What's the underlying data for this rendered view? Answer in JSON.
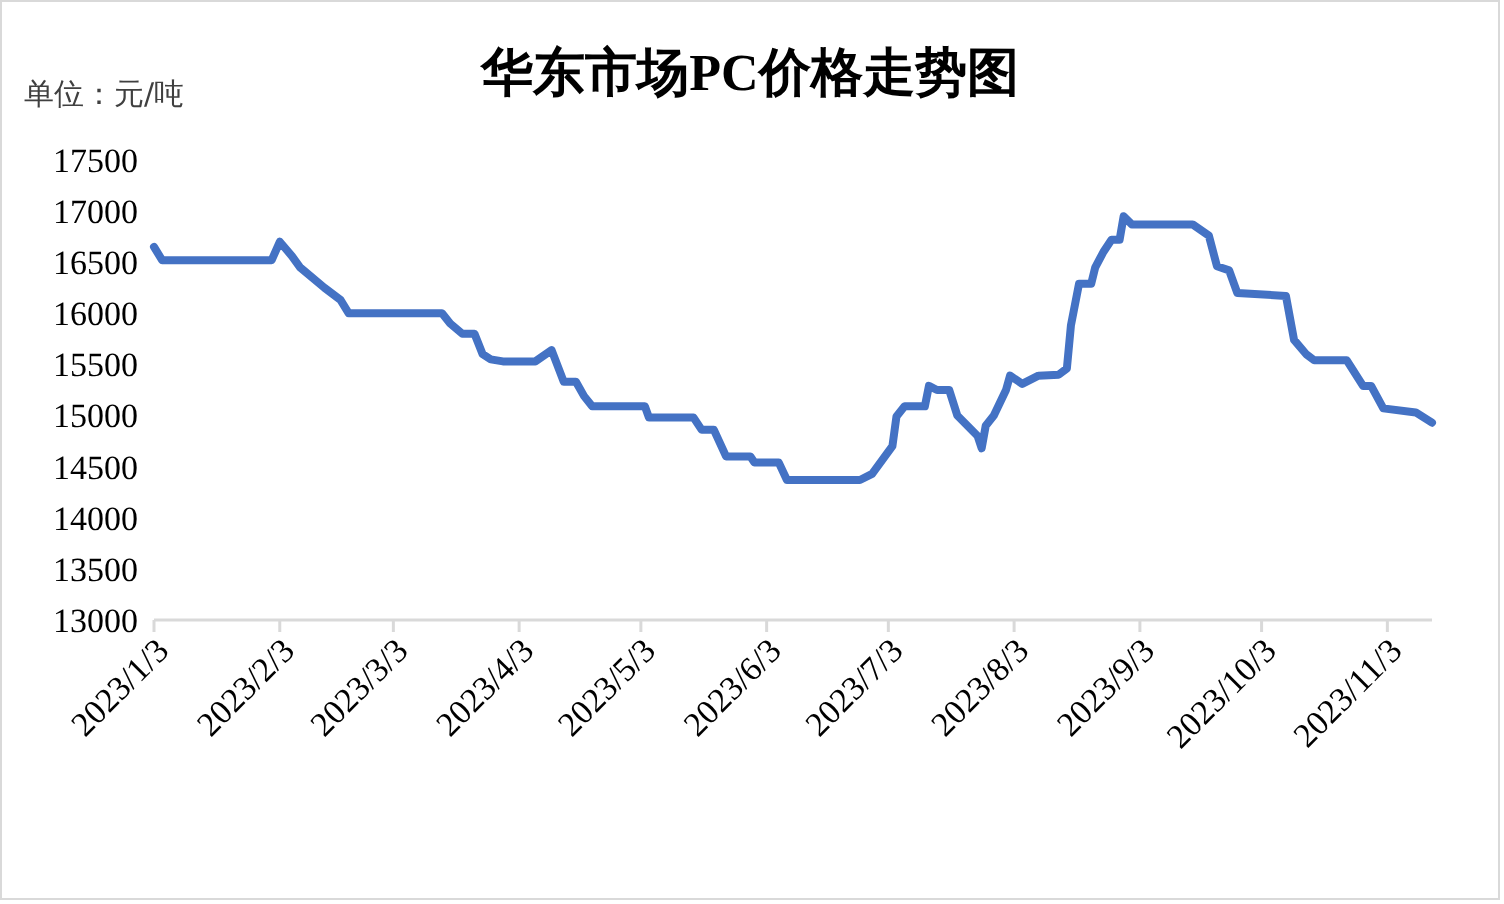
{
  "chart_data": {
    "type": "line",
    "title": "华东市场PC价格走势图",
    "ylabel": "单位：元/吨",
    "xlim": [
      "2023-01-03",
      "2023-11-14"
    ],
    "xticks": [
      {
        "value": "2023-01-03",
        "label": "2023/1/3"
      },
      {
        "value": "2023-02-03",
        "label": "2023/2/3"
      },
      {
        "value": "2023-03-03",
        "label": "2023/3/3"
      },
      {
        "value": "2023-04-03",
        "label": "2023/4/3"
      },
      {
        "value": "2023-05-03",
        "label": "2023/5/3"
      },
      {
        "value": "2023-06-03",
        "label": "2023/6/3"
      },
      {
        "value": "2023-07-03",
        "label": "2023/7/3"
      },
      {
        "value": "2023-08-03",
        "label": "2023/8/3"
      },
      {
        "value": "2023-09-03",
        "label": "2023/9/3"
      },
      {
        "value": "2023-10-03",
        "label": "2023/10/3"
      },
      {
        "value": "2023-11-03",
        "label": "2023/11/3"
      }
    ],
    "ylim": [
      13000,
      17500
    ],
    "yticks": [
      13000,
      13500,
      14000,
      14500,
      15000,
      15500,
      16000,
      16500,
      17000,
      17500
    ],
    "grid": false,
    "marker": "none",
    "line_style": "solid",
    "x": [
      "2023-01-03",
      "2023-01-05",
      "2023-02-01",
      "2023-02-03",
      "2023-02-06",
      "2023-02-08",
      "2023-02-14",
      "2023-02-18",
      "2023-02-20",
      "2023-03-15",
      "2023-03-17",
      "2023-03-20",
      "2023-03-23",
      "2023-03-25",
      "2023-03-27",
      "2023-03-30",
      "2023-04-07",
      "2023-04-11",
      "2023-04-14",
      "2023-04-17",
      "2023-04-19",
      "2023-04-21",
      "2023-05-04",
      "2023-05-05",
      "2023-05-16",
      "2023-05-18",
      "2023-05-21",
      "2023-05-24",
      "2023-05-30",
      "2023-05-31",
      "2023-06-06",
      "2023-06-08",
      "2023-06-26",
      "2023-06-29",
      "2023-07-04",
      "2023-07-05",
      "2023-07-07",
      "2023-07-12",
      "2023-07-13",
      "2023-07-15",
      "2023-07-18",
      "2023-07-20",
      "2023-07-25",
      "2023-07-26",
      "2023-07-27",
      "2023-07-29",
      "2023-08-01",
      "2023-08-02",
      "2023-08-05",
      "2023-08-09",
      "2023-08-14",
      "2023-08-16",
      "2023-08-17",
      "2023-08-19",
      "2023-08-22",
      "2023-08-23",
      "2023-08-25",
      "2023-08-27",
      "2023-08-29",
      "2023-08-30",
      "2023-09-01",
      "2023-09-16",
      "2023-09-20",
      "2023-09-22",
      "2023-09-25",
      "2023-09-27",
      "2023-10-09",
      "2023-10-11",
      "2023-10-14",
      "2023-10-16",
      "2023-10-24",
      "2023-10-28",
      "2023-10-30",
      "2023-11-02",
      "2023-11-10",
      "2023-11-14"
    ],
    "series": [
      {
        "color": "#4472c4",
        "values": [
          16650,
          16520,
          16520,
          16700,
          16560,
          16450,
          16250,
          16130,
          16000,
          16000,
          15900,
          15800,
          15800,
          15600,
          15550,
          15530,
          15530,
          15640,
          15330,
          15330,
          15190,
          15090,
          15090,
          14980,
          14980,
          14860,
          14860,
          14600,
          14600,
          14540,
          14540,
          14370,
          14370,
          14430,
          14700,
          14990,
          15090,
          15090,
          15290,
          15250,
          15250,
          15000,
          14800,
          14680,
          14900,
          15000,
          15250,
          15390,
          15310,
          15390,
          15400,
          15460,
          15880,
          16290,
          16290,
          16450,
          16600,
          16720,
          16720,
          16950,
          16870,
          16870,
          16760,
          16460,
          16420,
          16200,
          16170,
          15740,
          15600,
          15540,
          15540,
          15290,
          15290,
          15070,
          15030,
          14930
        ]
      }
    ]
  }
}
